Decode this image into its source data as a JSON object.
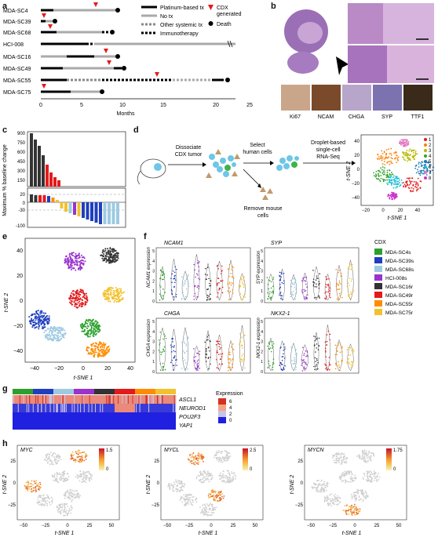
{
  "panels": {
    "a": "a",
    "b": "b",
    "c": "c",
    "d": "d",
    "e": "e",
    "f": "f",
    "g": "g",
    "h": "h"
  },
  "panel_a": {
    "samples": [
      "MDA-SC4",
      "MDA-SC39",
      "MDA-SC68",
      "HCI-008",
      "MDA-SC16",
      "MDA-SC49",
      "MDA-SC55",
      "MDA-SC75"
    ],
    "legend": {
      "platinum": "Platinum-based tx",
      "no_tx": "No tx",
      "other": "Other systemic tx",
      "immuno": "Immunotherapy",
      "cdx": "CDX",
      "cdx2": "generated",
      "death": "Death"
    },
    "x_ticks": [
      "0",
      "5",
      "10",
      "15",
      "20",
      "25"
    ],
    "x_label": "Months"
  },
  "panel_b": {
    "stains": [
      "Ki67",
      "NCAM",
      "CHGA",
      "SYP",
      "TTF1"
    ]
  },
  "panel_c": {
    "y_label": "Maximum % baseline change",
    "y_ticks_top": [
      "900",
      "750",
      "600",
      "450",
      "300",
      "150"
    ],
    "y_ticks_bottom": [
      "20",
      "0",
      "-30",
      "-100"
    ]
  },
  "panel_d": {
    "step1": "Dissociate",
    "step1b": "CDX tumor",
    "step2": "Select",
    "step2b": "human cells",
    "step3": "Droplet-based",
    "step3b": "single-cell",
    "step3c": "RNA-Seq",
    "step4": "Remove mouse",
    "step4b": "cells",
    "x_label": "t-SNE 1",
    "y_label": "t-SNE 2",
    "x_ticks": [
      "−20",
      "0",
      "20",
      "40"
    ],
    "y_ticks": [
      "40",
      "20",
      "0",
      "−20",
      "−40"
    ],
    "legend": [
      "1",
      "2",
      "3",
      "4",
      "5",
      "6",
      "7",
      "8"
    ],
    "colors": [
      "#e41a1c",
      "#ff7f00",
      "#b8b800",
      "#33a02c",
      "#1f78b4",
      "#17becf",
      "#e377c2",
      "#cc33cc"
    ]
  },
  "panel_e": {
    "x_label": "t-SNE 1",
    "y_label": "t-SNE 2",
    "x_ticks": [
      "−40",
      "−20",
      "0",
      "20",
      "40"
    ],
    "y_ticks": [
      "40",
      "20",
      "0",
      "−20",
      "−40"
    ]
  },
  "panel_f": {
    "genes": [
      "NCAM1",
      "SYP",
      "CHGA",
      "NKX2-1"
    ],
    "y_labels": [
      "NCAM1 expression",
      "SYP expression",
      "CHGA expression",
      "NKX2-1 expression"
    ],
    "y_ticks": [
      "5",
      "4",
      "3",
      "2",
      "1",
      "0"
    ],
    "legend_title": "CDX",
    "legend": [
      "MDA-SC4s",
      "MDA-SC39s",
      "MDA-SC68s",
      "HCI-008s",
      "MDA-SC16r",
      "MDA-SC49r",
      "MDA-SC55r",
      "MDA-SC75r"
    ],
    "colors": [
      "#2ca02c",
      "#1f3fbf",
      "#9ecae1",
      "#9933cc",
      "#333333",
      "#e31a1c",
      "#ff8c00",
      "#f2c12e"
    ]
  },
  "panel_g": {
    "genes": [
      "ASCL1",
      "NEUROD1",
      "POU2F3",
      "YAP1"
    ],
    "legend_title": "Expression",
    "legend_ticks": [
      "6",
      "4",
      "2",
      "0"
    ]
  },
  "panel_h": {
    "plots": [
      {
        "gene": "MYC",
        "max": "1.5",
        "min": "0"
      },
      {
        "gene": "MYCL",
        "max": "2.5",
        "min": "0"
      },
      {
        "gene": "MYCN",
        "max": "1.75",
        "min": "0"
      }
    ],
    "x_label": "t-SNE 1",
    "y_label": "t-SNE 2",
    "x_ticks": [
      "−50",
      "−25",
      "0",
      "25",
      "50"
    ],
    "y_ticks": [
      "25",
      "0",
      "−25"
    ]
  }
}
